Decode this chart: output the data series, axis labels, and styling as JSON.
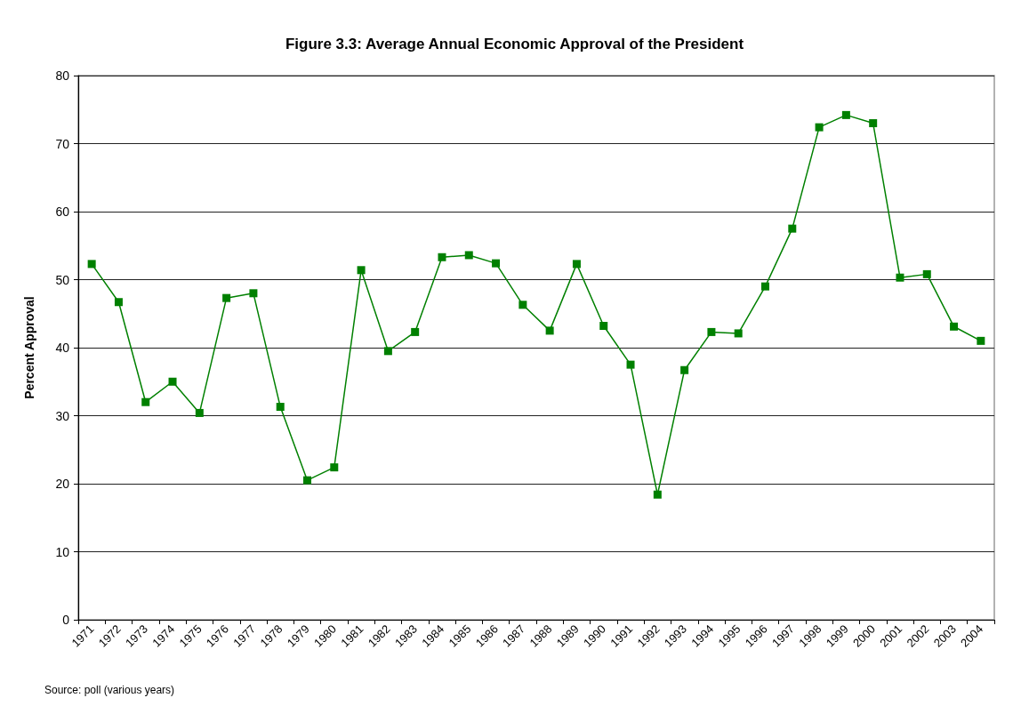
{
  "chart_data": {
    "type": "line",
    "title": "Figure 3.3: Average Annual Economic Approval of the President",
    "ylabel": "Percent Approval",
    "annotations": [
      "Source: poll (various years)"
    ],
    "categories": [
      "1971",
      "1972",
      "1973",
      "1974",
      "1975",
      "1976",
      "1977",
      "1978",
      "1979",
      "1980",
      "1981",
      "1982",
      "1983",
      "1984",
      "1985",
      "1986",
      "1987",
      "1988",
      "1989",
      "1990",
      "1991",
      "1992",
      "1993",
      "1994",
      "1995",
      "1996",
      "1997",
      "1998",
      "1999",
      "2000",
      "2001",
      "2002",
      "2003",
      "2004"
    ],
    "series": [
      {
        "color": "#008000",
        "values": [
          52.3,
          46.7,
          32.0,
          35.0,
          30.4,
          47.3,
          48.0,
          31.3,
          20.5,
          22.4,
          51.4,
          39.5,
          42.3,
          53.3,
          53.6,
          52.4,
          46.3,
          42.5,
          52.3,
          43.2,
          37.5,
          18.4,
          36.7,
          42.3,
          42.1,
          49.0,
          57.5,
          72.4,
          74.2,
          73.0,
          50.3,
          50.8,
          43.1,
          41.0
        ]
      }
    ],
    "ylim": [
      0,
      80
    ],
    "yticks": [
      0,
      10,
      20,
      30,
      40,
      50,
      60,
      70,
      80
    ],
    "grid": "y",
    "marker": "square",
    "line_style": "solid"
  }
}
